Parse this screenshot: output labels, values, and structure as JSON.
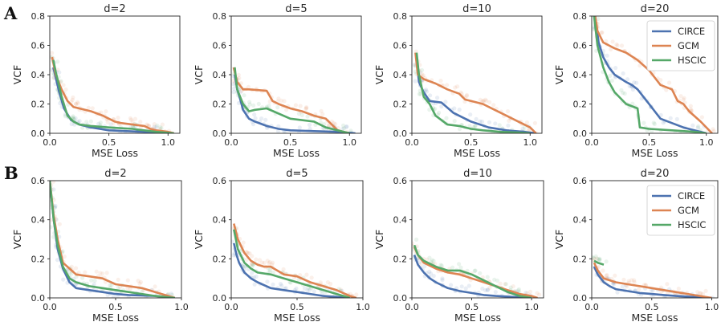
{
  "row_labels": [
    "A",
    "B"
  ],
  "colors": {
    "CIRCE": "#4c72b0",
    "GCM": "#dd8452",
    "HSCIC": "#55a868"
  },
  "chart_data": [
    {
      "type": "line",
      "panel": "A-d2",
      "title": "d=2",
      "xlabel": "MSE Loss",
      "ylabel": "VCF",
      "xlim": [
        0,
        1.1
      ],
      "ylim": [
        0,
        0.8
      ],
      "xticks": [
        0.0,
        0.5,
        1.0
      ],
      "yticks": [
        0.0,
        0.2,
        0.4,
        0.6,
        0.8
      ],
      "legend": false,
      "series": [
        {
          "name": "CIRCE",
          "x": [
            0.03,
            0.05,
            0.08,
            0.12,
            0.18,
            0.25,
            0.35,
            0.5,
            0.65,
            0.8,
            0.95,
            1.05
          ],
          "y": [
            0.45,
            0.38,
            0.28,
            0.17,
            0.09,
            0.06,
            0.04,
            0.02,
            0.015,
            0.01,
            0.005,
            0.0
          ]
        },
        {
          "name": "GCM",
          "x": [
            0.02,
            0.05,
            0.1,
            0.15,
            0.2,
            0.25,
            0.35,
            0.45,
            0.5,
            0.55,
            0.6,
            0.7,
            0.8,
            0.85,
            0.9,
            1.0,
            1.05
          ],
          "y": [
            0.52,
            0.4,
            0.3,
            0.22,
            0.18,
            0.17,
            0.15,
            0.12,
            0.1,
            0.08,
            0.07,
            0.06,
            0.05,
            0.03,
            0.02,
            0.01,
            0.0
          ]
        },
        {
          "name": "HSCIC",
          "x": [
            0.03,
            0.05,
            0.08,
            0.1,
            0.15,
            0.2,
            0.25,
            0.35,
            0.5,
            0.7,
            0.9,
            1.05
          ],
          "y": [
            0.5,
            0.42,
            0.32,
            0.25,
            0.12,
            0.08,
            0.06,
            0.05,
            0.04,
            0.03,
            0.01,
            0.0
          ]
        }
      ]
    },
    {
      "type": "line",
      "panel": "A-d5",
      "title": "d=5",
      "xlabel": "MSE Loss",
      "ylabel": "VCF",
      "xlim": [
        0,
        1.1
      ],
      "ylim": [
        0,
        0.8
      ],
      "xticks": [
        0.0,
        0.5,
        1.0
      ],
      "yticks": [
        0.0,
        0.2,
        0.4,
        0.6,
        0.8
      ],
      "legend": false,
      "series": [
        {
          "name": "CIRCE",
          "x": [
            0.03,
            0.05,
            0.08,
            0.1,
            0.15,
            0.2,
            0.3,
            0.4,
            0.5,
            0.7,
            0.9,
            1.05
          ],
          "y": [
            0.4,
            0.3,
            0.22,
            0.16,
            0.1,
            0.08,
            0.05,
            0.03,
            0.02,
            0.015,
            0.01,
            0.0
          ]
        },
        {
          "name": "GCM",
          "x": [
            0.02,
            0.05,
            0.1,
            0.15,
            0.3,
            0.35,
            0.4,
            0.5,
            0.6,
            0.7,
            0.8,
            0.85,
            0.9,
            1.0
          ],
          "y": [
            0.45,
            0.35,
            0.3,
            0.3,
            0.29,
            0.22,
            0.2,
            0.17,
            0.15,
            0.12,
            0.1,
            0.06,
            0.02,
            0.0
          ]
        },
        {
          "name": "HSCIC",
          "x": [
            0.03,
            0.05,
            0.1,
            0.15,
            0.2,
            0.3,
            0.5,
            0.7,
            0.8,
            0.9,
            1.0
          ],
          "y": [
            0.45,
            0.3,
            0.2,
            0.15,
            0.16,
            0.17,
            0.1,
            0.08,
            0.04,
            0.02,
            0.0
          ]
        }
      ]
    },
    {
      "type": "line",
      "panel": "A-d10",
      "title": "d=10",
      "xlabel": "MSE Loss",
      "ylabel": "VCF",
      "xlim": [
        0,
        1.1
      ],
      "ylim": [
        0,
        0.8
      ],
      "xticks": [
        0.0,
        0.5,
        1.0
      ],
      "yticks": [
        0.0,
        0.2,
        0.4,
        0.6,
        0.8
      ],
      "legend": false,
      "series": [
        {
          "name": "CIRCE",
          "x": [
            0.04,
            0.06,
            0.1,
            0.15,
            0.25,
            0.35,
            0.5,
            0.65,
            0.8,
            0.95,
            1.05
          ],
          "y": [
            0.5,
            0.35,
            0.28,
            0.22,
            0.21,
            0.14,
            0.08,
            0.04,
            0.02,
            0.01,
            0.0
          ]
        },
        {
          "name": "GCM",
          "x": [
            0.03,
            0.05,
            0.1,
            0.2,
            0.3,
            0.4,
            0.45,
            0.5,
            0.6,
            0.7,
            0.8,
            0.9,
            1.0,
            1.05
          ],
          "y": [
            0.55,
            0.4,
            0.37,
            0.34,
            0.3,
            0.27,
            0.23,
            0.22,
            0.2,
            0.16,
            0.12,
            0.08,
            0.04,
            0.0
          ]
        },
        {
          "name": "HSCIC",
          "x": [
            0.04,
            0.06,
            0.1,
            0.15,
            0.2,
            0.3,
            0.4,
            0.5,
            0.6,
            0.75,
            0.9,
            1.0
          ],
          "y": [
            0.55,
            0.4,
            0.25,
            0.2,
            0.12,
            0.06,
            0.05,
            0.03,
            0.02,
            0.01,
            0.005,
            0.0
          ]
        }
      ]
    },
    {
      "type": "line",
      "panel": "A-d20",
      "title": "d=20",
      "xlabel": "MSE Loss",
      "ylabel": "VCF",
      "xlim": [
        0,
        1.1
      ],
      "ylim": [
        0,
        0.8
      ],
      "xticks": [
        0.0,
        0.5,
        1.0
      ],
      "yticks": [
        0.0,
        0.2,
        0.4,
        0.6,
        0.8
      ],
      "legend": true,
      "series": [
        {
          "name": "CIRCE",
          "x": [
            0.03,
            0.06,
            0.1,
            0.15,
            0.2,
            0.3,
            0.35,
            0.4,
            0.5,
            0.6,
            0.8,
            1.0
          ],
          "y": [
            0.8,
            0.62,
            0.52,
            0.45,
            0.4,
            0.35,
            0.33,
            0.3,
            0.2,
            0.1,
            0.04,
            0.0
          ]
        },
        {
          "name": "GCM",
          "x": [
            0.03,
            0.05,
            0.1,
            0.2,
            0.3,
            0.4,
            0.5,
            0.6,
            0.7,
            0.75,
            0.8,
            0.85,
            0.95,
            1.05
          ],
          "y": [
            0.8,
            0.7,
            0.62,
            0.58,
            0.55,
            0.5,
            0.43,
            0.33,
            0.3,
            0.22,
            0.2,
            0.15,
            0.08,
            0.0
          ]
        },
        {
          "name": "HSCIC",
          "x": [
            0.02,
            0.05,
            0.1,
            0.15,
            0.2,
            0.3,
            0.4,
            0.42,
            0.5,
            0.7,
            0.9,
            1.0
          ],
          "y": [
            0.8,
            0.6,
            0.45,
            0.35,
            0.28,
            0.2,
            0.17,
            0.04,
            0.03,
            0.02,
            0.01,
            0.0
          ]
        }
      ]
    },
    {
      "type": "line",
      "panel": "B-d2",
      "title": "d=2",
      "xlabel": "MSE Loss",
      "ylabel": "VCF",
      "xlim": [
        0,
        1.0
      ],
      "ylim": [
        0,
        0.6
      ],
      "xticks": [
        0.0,
        0.5,
        1.0
      ],
      "yticks": [
        0.0,
        0.2,
        0.4,
        0.6
      ],
      "legend": false,
      "series": [
        {
          "name": "CIRCE",
          "x": [
            0.0,
            0.03,
            0.06,
            0.1,
            0.15,
            0.2,
            0.3,
            0.4,
            0.5,
            0.6,
            0.8,
            0.95
          ],
          "y": [
            0.6,
            0.4,
            0.25,
            0.15,
            0.08,
            0.05,
            0.04,
            0.03,
            0.02,
            0.015,
            0.01,
            0.0
          ]
        },
        {
          "name": "GCM",
          "x": [
            0.0,
            0.03,
            0.06,
            0.1,
            0.2,
            0.3,
            0.4,
            0.5,
            0.6,
            0.7,
            0.8,
            0.95
          ],
          "y": [
            0.6,
            0.42,
            0.3,
            0.18,
            0.12,
            0.11,
            0.1,
            0.07,
            0.06,
            0.05,
            0.03,
            0.0
          ]
        },
        {
          "name": "HSCIC",
          "x": [
            0.0,
            0.03,
            0.06,
            0.1,
            0.15,
            0.2,
            0.3,
            0.4,
            0.5,
            0.6,
            0.8,
            0.95
          ],
          "y": [
            0.6,
            0.4,
            0.27,
            0.16,
            0.1,
            0.08,
            0.06,
            0.05,
            0.04,
            0.03,
            0.01,
            0.0
          ]
        }
      ]
    },
    {
      "type": "line",
      "panel": "B-d5",
      "title": "d=5",
      "xlabel": "MSE Loss",
      "ylabel": "VCF",
      "xlim": [
        0,
        1.0
      ],
      "ylim": [
        0,
        0.6
      ],
      "xticks": [
        0.0,
        0.5,
        1.0
      ],
      "yticks": [
        0.0,
        0.2,
        0.4,
        0.6
      ],
      "legend": false,
      "series": [
        {
          "name": "CIRCE",
          "x": [
            0.02,
            0.04,
            0.06,
            0.1,
            0.15,
            0.2,
            0.3,
            0.4,
            0.5,
            0.6,
            0.7,
            0.8,
            0.9
          ],
          "y": [
            0.28,
            0.22,
            0.18,
            0.13,
            0.1,
            0.08,
            0.05,
            0.04,
            0.03,
            0.02,
            0.01,
            0.005,
            0.0
          ]
        },
        {
          "name": "GCM",
          "x": [
            0.02,
            0.05,
            0.1,
            0.15,
            0.2,
            0.25,
            0.3,
            0.4,
            0.5,
            0.6,
            0.7,
            0.8,
            0.9,
            0.95
          ],
          "y": [
            0.38,
            0.3,
            0.23,
            0.19,
            0.17,
            0.16,
            0.16,
            0.12,
            0.11,
            0.08,
            0.06,
            0.04,
            0.01,
            0.0
          ]
        },
        {
          "name": "HSCIC",
          "x": [
            0.02,
            0.05,
            0.1,
            0.15,
            0.2,
            0.3,
            0.4,
            0.5,
            0.6,
            0.7,
            0.8,
            0.9
          ],
          "y": [
            0.35,
            0.25,
            0.18,
            0.15,
            0.13,
            0.12,
            0.1,
            0.08,
            0.06,
            0.04,
            0.02,
            0.0
          ]
        }
      ]
    },
    {
      "type": "line",
      "panel": "B-d10",
      "title": "d=10",
      "xlabel": "MSE Loss",
      "ylabel": "VCF",
      "xlim": [
        0,
        1.1
      ],
      "ylim": [
        0,
        0.6
      ],
      "xticks": [
        0.0,
        0.5,
        1.0
      ],
      "yticks": [
        0.0,
        0.2,
        0.4,
        0.6
      ],
      "legend": false,
      "series": [
        {
          "name": "CIRCE",
          "x": [
            0.02,
            0.05,
            0.1,
            0.15,
            0.2,
            0.3,
            0.4,
            0.5,
            0.6,
            0.7,
            0.85,
            1.0
          ],
          "y": [
            0.22,
            0.17,
            0.13,
            0.1,
            0.08,
            0.05,
            0.035,
            0.025,
            0.015,
            0.01,
            0.005,
            0.0
          ]
        },
        {
          "name": "GCM",
          "x": [
            0.02,
            0.05,
            0.1,
            0.2,
            0.3,
            0.4,
            0.5,
            0.6,
            0.7,
            0.8,
            0.9,
            1.0,
            1.05
          ],
          "y": [
            0.26,
            0.22,
            0.18,
            0.15,
            0.13,
            0.12,
            0.1,
            0.08,
            0.06,
            0.04,
            0.02,
            0.01,
            0.0
          ]
        },
        {
          "name": "HSCIC",
          "x": [
            0.02,
            0.05,
            0.1,
            0.2,
            0.3,
            0.4,
            0.5,
            0.6,
            0.7,
            0.8,
            0.9,
            1.0
          ],
          "y": [
            0.27,
            0.22,
            0.19,
            0.16,
            0.14,
            0.14,
            0.12,
            0.09,
            0.06,
            0.03,
            0.01,
            0.0
          ]
        }
      ]
    },
    {
      "type": "line",
      "panel": "B-d20",
      "title": "d=20",
      "xlabel": "MSE Loss",
      "ylabel": "VCF",
      "xlim": [
        0,
        1.05
      ],
      "ylim": [
        0,
        0.6
      ],
      "xticks": [
        0.0,
        0.5,
        1.0
      ],
      "yticks": [
        0.0,
        0.2,
        0.4,
        0.6
      ],
      "legend": true,
      "series": [
        {
          "name": "CIRCE",
          "x": [
            0.02,
            0.05,
            0.1,
            0.15,
            0.2,
            0.3,
            0.4,
            0.5,
            0.6,
            0.7,
            0.85,
            1.0
          ],
          "y": [
            0.16,
            0.12,
            0.08,
            0.06,
            0.045,
            0.035,
            0.025,
            0.02,
            0.015,
            0.01,
            0.005,
            0.0
          ]
        },
        {
          "name": "GCM",
          "x": [
            0.02,
            0.05,
            0.1,
            0.15,
            0.2,
            0.3,
            0.4,
            0.5,
            0.6,
            0.7,
            0.8,
            0.9,
            1.0
          ],
          "y": [
            0.18,
            0.14,
            0.1,
            0.09,
            0.08,
            0.07,
            0.06,
            0.05,
            0.04,
            0.03,
            0.02,
            0.01,
            0.0
          ]
        },
        {
          "name": "HSCIC",
          "x": [
            0.02,
            0.05,
            0.1
          ],
          "y": [
            0.19,
            0.18,
            0.17
          ]
        }
      ]
    }
  ]
}
